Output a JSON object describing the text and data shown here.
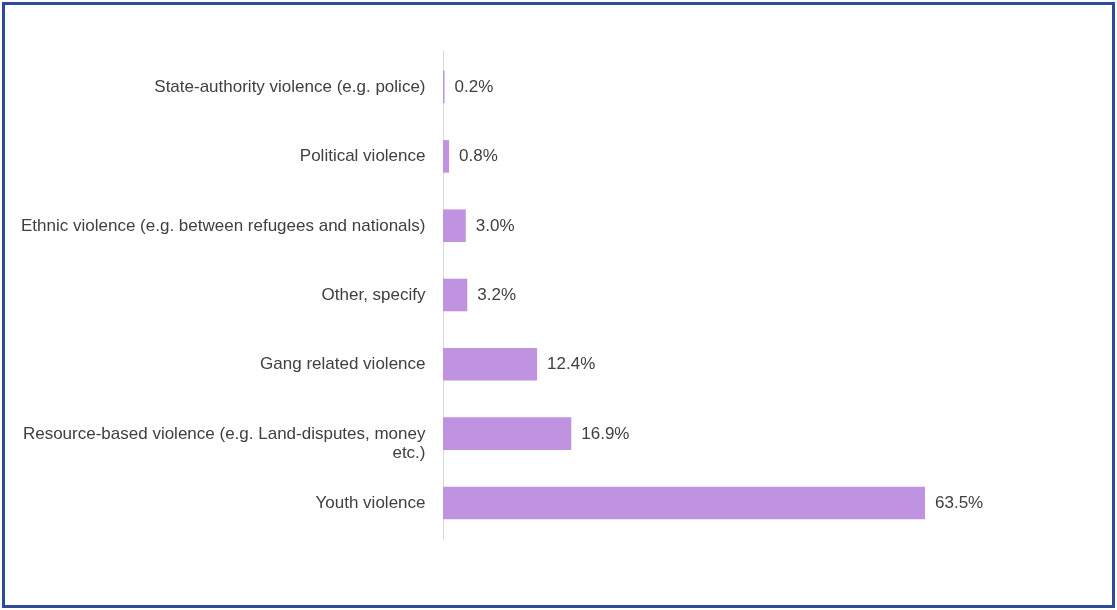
{
  "chart_data": {
    "type": "bar",
    "orientation": "horizontal",
    "categories": [
      "State-authority violence (e.g. police)",
      "Political violence",
      "Ethnic violence (e.g. between refugees and nationals)",
      "Other, specify",
      "Gang related violence",
      "Resource-based violence (e.g. Land-disputes, money etc.)",
      "Youth violence"
    ],
    "values": [
      0.2,
      0.8,
      3.0,
      3.2,
      12.4,
      16.9,
      63.5
    ],
    "value_labels": [
      "0.2%",
      "0.8%",
      "3.0%",
      "3.2%",
      "12.4%",
      "16.9%",
      "63.5%"
    ],
    "color": "#bf93e0",
    "grid": false
  }
}
